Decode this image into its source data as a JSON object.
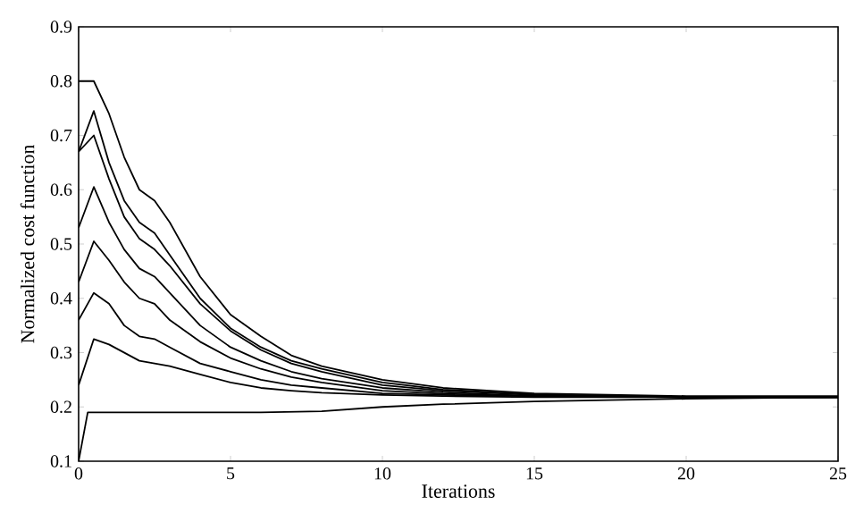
{
  "chart_data": {
    "type": "line",
    "xlabel": "Iterations",
    "ylabel": "Normalized cost function",
    "xlim": [
      0,
      25
    ],
    "ylim": [
      0.1,
      0.9
    ],
    "xticks": [
      0,
      5,
      10,
      15,
      20,
      25
    ],
    "yticks": [
      0.1,
      0.2,
      0.3,
      0.4,
      0.5,
      0.6,
      0.7,
      0.8,
      0.9
    ],
    "grid": false,
    "marker": "none",
    "line_style": "solid",
    "x": [
      0,
      0.5,
      1,
      1.5,
      2,
      2.5,
      3,
      4,
      5,
      6,
      7,
      8,
      10,
      12,
      15,
      20,
      25
    ],
    "series": [
      {
        "color": "#000000",
        "values": [
          0.8,
          0.8,
          0.74,
          0.66,
          0.6,
          0.58,
          0.54,
          0.44,
          0.37,
          0.33,
          0.295,
          0.275,
          0.25,
          0.235,
          0.225,
          0.22,
          0.22
        ]
      },
      {
        "color": "#000000",
        "values": [
          0.67,
          0.745,
          0.65,
          0.58,
          0.54,
          0.52,
          0.48,
          0.4,
          0.345,
          0.31,
          0.285,
          0.27,
          0.245,
          0.232,
          0.223,
          0.218,
          0.218
        ]
      },
      {
        "color": "#000000",
        "values": [
          0.67,
          0.7,
          0.62,
          0.55,
          0.51,
          0.49,
          0.46,
          0.39,
          0.34,
          0.305,
          0.28,
          0.265,
          0.24,
          0.23,
          0.222,
          0.218,
          0.218
        ]
      },
      {
        "color": "#000000",
        "values": [
          0.53,
          0.605,
          0.54,
          0.49,
          0.455,
          0.44,
          0.41,
          0.35,
          0.31,
          0.285,
          0.265,
          0.252,
          0.235,
          0.227,
          0.22,
          0.218,
          0.218
        ]
      },
      {
        "color": "#000000",
        "values": [
          0.43,
          0.505,
          0.47,
          0.43,
          0.4,
          0.39,
          0.36,
          0.32,
          0.29,
          0.27,
          0.255,
          0.245,
          0.23,
          0.224,
          0.22,
          0.218,
          0.218
        ]
      },
      {
        "color": "#000000",
        "values": [
          0.36,
          0.41,
          0.39,
          0.35,
          0.33,
          0.325,
          0.31,
          0.28,
          0.265,
          0.25,
          0.24,
          0.235,
          0.225,
          0.222,
          0.22,
          0.218,
          0.218
        ]
      },
      {
        "color": "#000000",
        "values": [
          0.24,
          0.325,
          0.315,
          0.3,
          0.285,
          0.28,
          0.275,
          0.26,
          0.245,
          0.235,
          0.23,
          0.226,
          0.222,
          0.22,
          0.218,
          0.218,
          0.218
        ]
      },
      {
        "color": "#000000",
        "x": [
          0,
          0.3,
          1,
          2,
          4,
          6,
          8,
          10,
          12,
          15,
          20,
          25
        ],
        "values": [
          0.1,
          0.19,
          0.19,
          0.19,
          0.19,
          0.19,
          0.192,
          0.2,
          0.205,
          0.21,
          0.215,
          0.218
        ]
      }
    ]
  }
}
